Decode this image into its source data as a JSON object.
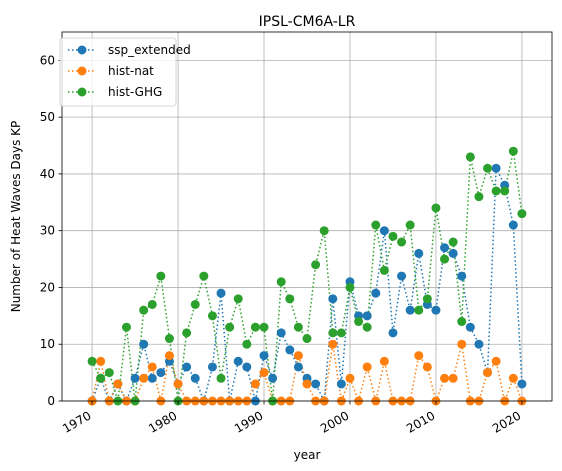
{
  "chart_data": {
    "type": "line",
    "title": "IPSL-CM6A-LR",
    "xlabel": "year",
    "ylabel": "Number of Heat Waves Days KP",
    "xlim": [
      1966.5,
      2023.5
    ],
    "ylim": [
      0,
      65
    ],
    "xticks": [
      1970,
      1980,
      1990,
      2000,
      2010,
      2020
    ],
    "yticks": [
      0,
      10,
      20,
      30,
      40,
      50,
      60
    ],
    "grid": true,
    "legend": "top-left",
    "x": [
      1970,
      1971,
      1972,
      1973,
      1974,
      1975,
      1976,
      1977,
      1978,
      1979,
      1980,
      1981,
      1982,
      1983,
      1984,
      1985,
      1986,
      1987,
      1988,
      1989,
      1990,
      1991,
      1992,
      1993,
      1994,
      1995,
      1996,
      1997,
      1998,
      1999,
      2000,
      2001,
      2002,
      2003,
      2004,
      2005,
      2006,
      2007,
      2008,
      2009,
      2010,
      2011,
      2012,
      2013,
      2014,
      2015,
      2016,
      2017,
      2018,
      2019,
      2020
    ],
    "series": [
      {
        "name": "ssp_extended",
        "color": "#1f77b4",
        "values": [
          0,
          4,
          0,
          3,
          0,
          4,
          10,
          4,
          5,
          7,
          3,
          6,
          4,
          0,
          6,
          19,
          0,
          7,
          6,
          0,
          8,
          4,
          12,
          9,
          6,
          4,
          3,
          0,
          18,
          3,
          21,
          15,
          15,
          19,
          30,
          12,
          22,
          16,
          26,
          17,
          16,
          27,
          26,
          22,
          13,
          10,
          5,
          41,
          38,
          31,
          3
        ]
      },
      {
        "name": "hist-nat",
        "color": "#ff7f0e",
        "values": [
          0,
          7,
          0,
          3,
          0,
          0,
          4,
          6,
          0,
          8,
          3,
          0,
          0,
          0,
          0,
          0,
          0,
          0,
          0,
          3,
          5,
          0,
          0,
          0,
          8,
          3,
          0,
          0,
          10,
          0,
          4,
          0,
          6,
          0,
          7,
          0,
          0,
          0,
          8,
          6,
          0,
          4,
          4,
          10,
          0,
          0,
          5,
          7,
          0,
          4,
          0
        ]
      },
      {
        "name": "hist-GHG",
        "color": "#2ca02c",
        "values": [
          7,
          4,
          5,
          0,
          13,
          0,
          16,
          17,
          22,
          11,
          0,
          12,
          17,
          22,
          15,
          4,
          13,
          18,
          10,
          13,
          13,
          0,
          21,
          18,
          13,
          11,
          24,
          30,
          12,
          12,
          20,
          14,
          13,
          31,
          23,
          29,
          28,
          31,
          16,
          18,
          34,
          25,
          28,
          14,
          43,
          36,
          41,
          37,
          37,
          44,
          33
        ]
      }
    ]
  }
}
